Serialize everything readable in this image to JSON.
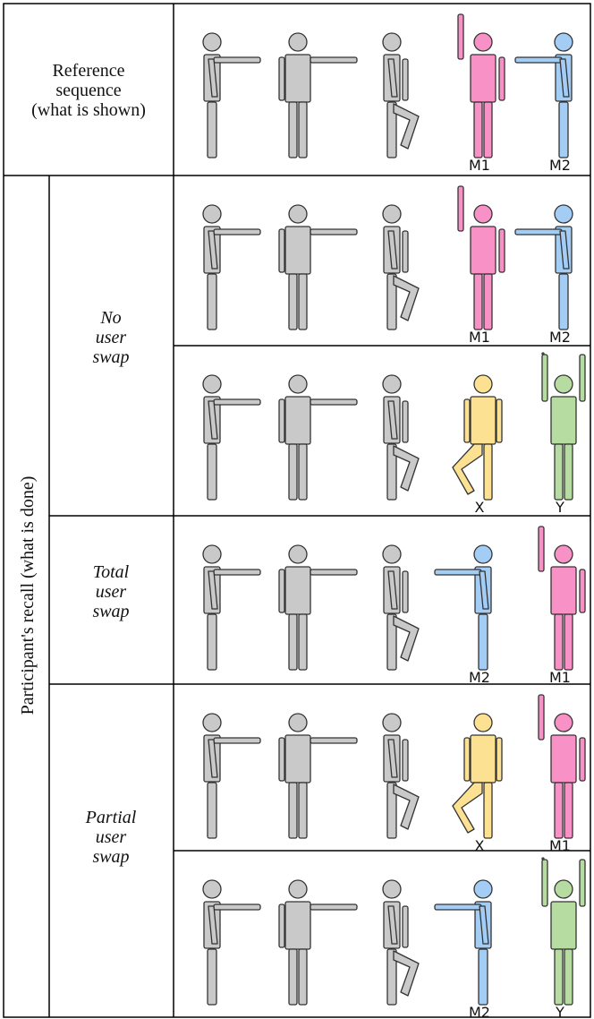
{
  "reference": {
    "label_lines": [
      "Reference",
      "sequence",
      "(what is shown)"
    ],
    "figure_labels": [
      "M1",
      "M2"
    ]
  },
  "recall": {
    "label": "Participant's recall (what is done)",
    "groups": [
      {
        "label_lines": [
          "No",
          "user",
          "swap"
        ],
        "rows": [
          {
            "figure_labels": [
              "M1",
              "M2"
            ]
          },
          {
            "figure_labels": [
              "X",
              "Y"
            ]
          }
        ]
      },
      {
        "label_lines": [
          "Total",
          "user",
          "swap"
        ],
        "rows": [
          {
            "figure_labels": [
              "M2",
              "M1"
            ]
          }
        ]
      },
      {
        "label_lines": [
          "Partial",
          "user",
          "swap"
        ],
        "rows": [
          {
            "figure_labels": [
              "X",
              "M1"
            ]
          },
          {
            "figure_labels": [
              "M2",
              "Y"
            ]
          }
        ]
      }
    ]
  }
}
